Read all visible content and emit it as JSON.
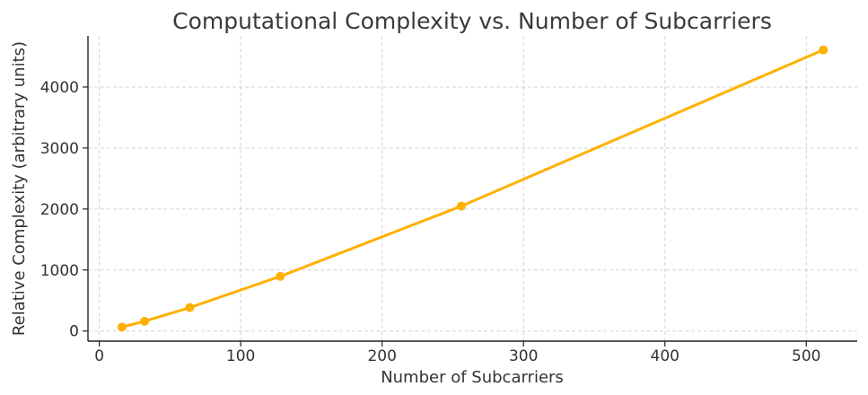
{
  "chart_data": {
    "type": "line",
    "title": "Computational Complexity vs. Number of Subcarriers",
    "xlabel": "Number of Subcarriers",
    "ylabel": "Relative Complexity (arbitrary units)",
    "x": [
      16,
      32,
      64,
      128,
      256,
      512
    ],
    "series": [
      {
        "values": [
          64,
          160,
          384,
          896,
          2048,
          4608
        ],
        "color": "#FFB000"
      }
    ],
    "xlim": [
      -8,
      536
    ],
    "ylim": [
      -166,
      4838
    ],
    "x_ticks": [
      0,
      100,
      200,
      300,
      400,
      500
    ],
    "y_ticks": [
      0,
      1000,
      2000,
      3000,
      4000
    ],
    "grid": true,
    "legend": "none"
  }
}
